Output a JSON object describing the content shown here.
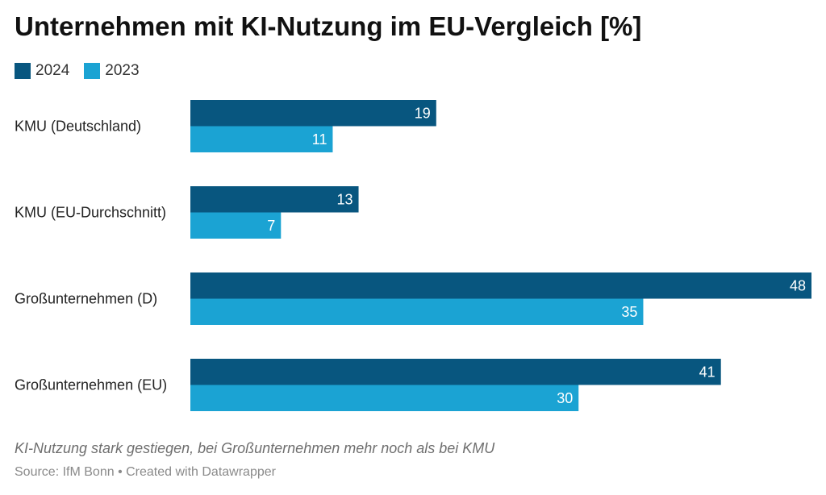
{
  "chart_data": {
    "type": "bar",
    "orientation": "horizontal",
    "title": "Unternehmen mit KI-Nutzung im EU-Vergleich [%]",
    "categories": [
      "KMU (Deutschland)",
      "KMU (EU-Durchschnitt)",
      "Großunternehmen (D)",
      "Großunternehmen (EU)"
    ],
    "series": [
      {
        "name": "2024",
        "color": "#08567f",
        "values": [
          19,
          13,
          48,
          41
        ]
      },
      {
        "name": "2023",
        "color": "#1ba3d3",
        "values": [
          11,
          7,
          35,
          30
        ]
      }
    ],
    "xlim": [
      0,
      48
    ],
    "grid": false,
    "legend_position": "top-left"
  },
  "subtitle": "KI-Nutzung stark gestiegen, bei Großunternehmen mehr noch als bei KMU",
  "source": "Source: IfM Bonn • Created with Datawrapper"
}
